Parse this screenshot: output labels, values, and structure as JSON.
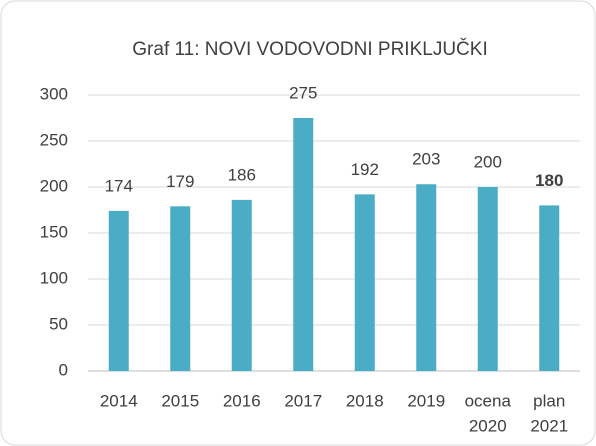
{
  "chart_data": {
    "type": "bar",
    "title": "Graf 11: NOVI VODOVODNI PRIKLJUČKI",
    "categories": [
      [
        "2014"
      ],
      [
        "2015"
      ],
      [
        "2016"
      ],
      [
        "2017"
      ],
      [
        "2018"
      ],
      [
        "2019"
      ],
      [
        "ocena",
        "2020"
      ],
      [
        "plan",
        "2021"
      ]
    ],
    "values": [
      174,
      179,
      186,
      275,
      192,
      203,
      200,
      180
    ],
    "bold_labels": [
      false,
      false,
      false,
      false,
      false,
      false,
      false,
      true
    ],
    "color": "#4bacc6",
    "ylim": [
      0,
      300
    ],
    "yticks": [
      0,
      50,
      100,
      150,
      200,
      250,
      300
    ],
    "grid": true
  }
}
